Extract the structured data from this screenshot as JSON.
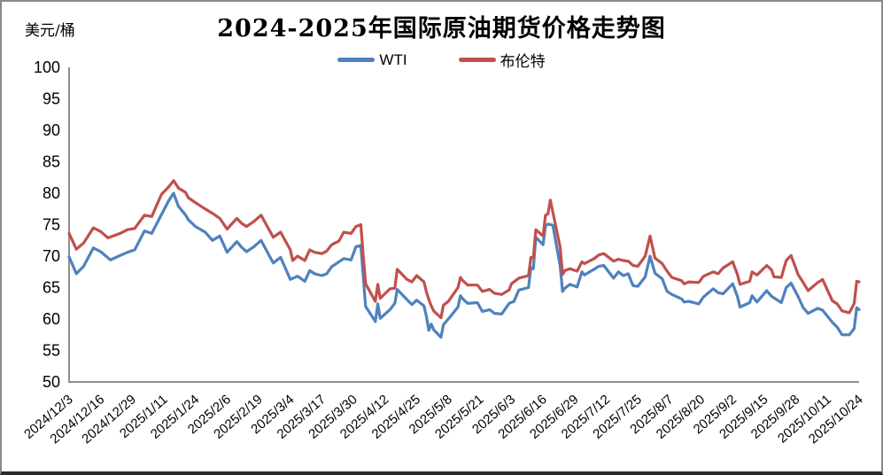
{
  "chart_data": {
    "type": "line",
    "title": "2024-2025年国际原油期货价格走势图",
    "unit_label": "美元/桶",
    "ylim": [
      50,
      100
    ],
    "y_ticks": [
      100,
      95,
      90,
      85,
      80,
      75,
      70,
      65,
      60,
      55,
      50
    ],
    "grid": false,
    "legend_position": "top-center",
    "axis_color": "#8f8f8f",
    "x_unit": "days since 2024/12/3",
    "x_total_days": 325,
    "x_tick_days": [
      0,
      13,
      26,
      39,
      52,
      65,
      78,
      91,
      104,
      117,
      130,
      143,
      156,
      169,
      182,
      195,
      208,
      221,
      234,
      247,
      260,
      273,
      286,
      299,
      312,
      325
    ],
    "x_tick_labels": [
      "2024/12/3",
      "2024/12/16",
      "2024/12/29",
      "2025/1/11",
      "2025/1/24",
      "2025/2/6",
      "2025/2/19",
      "2025/3/4",
      "2025/3/17",
      "2025/3/30",
      "2025/4/12",
      "2025/4/25",
      "2025/5/8",
      "2025/5/21",
      "2025/6/3",
      "2025/6/16",
      "2025/6/29",
      "2025/7/12",
      "2025/7/25",
      "2025/8/7",
      "2025/8/20",
      "2025/9/2",
      "2025/9/15",
      "2025/9/28",
      "2025/10/11",
      "2025/10/24"
    ],
    "series": [
      {
        "name": "WTI",
        "color": "#4f81bd",
        "points": [
          [
            0,
            69.9
          ],
          [
            3,
            67.2
          ],
          [
            6,
            68.4
          ],
          [
            10,
            71.3
          ],
          [
            13,
            70.7
          ],
          [
            17,
            69.4
          ],
          [
            21,
            70.1
          ],
          [
            24,
            70.6
          ],
          [
            27,
            71.0
          ],
          [
            31,
            74.0
          ],
          [
            34,
            73.6
          ],
          [
            38,
            76.6
          ],
          [
            41,
            78.8
          ],
          [
            43,
            80.0
          ],
          [
            45,
            77.9
          ],
          [
            48,
            76.5
          ],
          [
            49,
            75.8
          ],
          [
            52,
            74.7
          ],
          [
            56,
            73.8
          ],
          [
            59,
            72.5
          ],
          [
            62,
            73.2
          ],
          [
            65,
            70.6
          ],
          [
            69,
            72.3
          ],
          [
            71,
            71.4
          ],
          [
            73,
            70.7
          ],
          [
            76,
            71.5
          ],
          [
            79,
            72.5
          ],
          [
            84,
            68.9
          ],
          [
            87,
            69.8
          ],
          [
            91,
            66.3
          ],
          [
            94,
            66.8
          ],
          [
            97,
            66.0
          ],
          [
            99,
            67.7
          ],
          [
            101,
            67.2
          ],
          [
            104,
            66.9
          ],
          [
            106,
            67.2
          ],
          [
            108,
            68.3
          ],
          [
            111,
            69.1
          ],
          [
            113,
            69.6
          ],
          [
            116,
            69.4
          ],
          [
            118,
            71.5
          ],
          [
            120,
            71.7
          ],
          [
            121,
            66.9
          ],
          [
            122,
            62.0
          ],
          [
            126,
            59.6
          ],
          [
            127,
            62.4
          ],
          [
            128,
            60.1
          ],
          [
            132,
            61.5
          ],
          [
            134,
            62.5
          ],
          [
            135,
            64.7
          ],
          [
            139,
            63.1
          ],
          [
            141,
            62.3
          ],
          [
            143,
            63.0
          ],
          [
            146,
            62.1
          ],
          [
            147,
            60.4
          ],
          [
            148,
            58.2
          ],
          [
            149,
            59.2
          ],
          [
            150,
            58.3
          ],
          [
            153,
            57.1
          ],
          [
            154,
            59.1
          ],
          [
            156,
            60.0
          ],
          [
            160,
            61.9
          ],
          [
            161,
            63.7
          ],
          [
            162,
            63.2
          ],
          [
            164,
            62.5
          ],
          [
            168,
            62.6
          ],
          [
            170,
            61.2
          ],
          [
            173,
            61.5
          ],
          [
            175,
            60.9
          ],
          [
            178,
            60.8
          ],
          [
            181,
            62.5
          ],
          [
            183,
            62.8
          ],
          [
            185,
            64.6
          ],
          [
            189,
            65.0
          ],
          [
            190,
            68.2
          ],
          [
            191,
            68.0
          ],
          [
            192,
            73.0
          ],
          [
            195,
            71.8
          ],
          [
            196,
            74.8
          ],
          [
            197,
            75.1
          ],
          [
            199,
            74.9
          ],
          [
            202,
            68.5
          ],
          [
            203,
            64.4
          ],
          [
            204,
            64.9
          ],
          [
            206,
            65.5
          ],
          [
            209,
            65.1
          ],
          [
            211,
            67.5
          ],
          [
            212,
            67.0
          ],
          [
            216,
            67.9
          ],
          [
            218,
            68.4
          ],
          [
            220,
            68.5
          ],
          [
            224,
            66.5
          ],
          [
            226,
            67.5
          ],
          [
            228,
            66.9
          ],
          [
            230,
            67.2
          ],
          [
            232,
            65.3
          ],
          [
            234,
            65.2
          ],
          [
            237,
            66.7
          ],
          [
            239,
            70.0
          ],
          [
            241,
            67.3
          ],
          [
            244,
            66.4
          ],
          [
            246,
            64.4
          ],
          [
            248,
            63.9
          ],
          [
            252,
            63.2
          ],
          [
            253,
            62.7
          ],
          [
            255,
            62.8
          ],
          [
            259,
            62.4
          ],
          [
            261,
            63.5
          ],
          [
            265,
            64.8
          ],
          [
            267,
            64.2
          ],
          [
            269,
            64.0
          ],
          [
            273,
            65.6
          ],
          [
            275,
            63.5
          ],
          [
            276,
            61.9
          ],
          [
            280,
            62.6
          ],
          [
            281,
            63.7
          ],
          [
            283,
            62.7
          ],
          [
            287,
            64.5
          ],
          [
            289,
            63.6
          ],
          [
            293,
            62.6
          ],
          [
            295,
            65.0
          ],
          [
            297,
            65.7
          ],
          [
            300,
            63.5
          ],
          [
            302,
            61.8
          ],
          [
            304,
            60.9
          ],
          [
            308,
            61.7
          ],
          [
            310,
            61.4
          ],
          [
            314,
            59.5
          ],
          [
            316,
            58.7
          ],
          [
            318,
            57.5
          ],
          [
            321,
            57.5
          ],
          [
            323,
            58.5
          ],
          [
            324,
            61.8
          ],
          [
            325,
            61.5
          ]
        ]
      },
      {
        "name": "布伦特",
        "color": "#c0504d",
        "points": [
          [
            0,
            73.6
          ],
          [
            3,
            71.1
          ],
          [
            6,
            72.1
          ],
          [
            10,
            74.5
          ],
          [
            13,
            73.9
          ],
          [
            16,
            72.9
          ],
          [
            21,
            73.6
          ],
          [
            24,
            74.2
          ],
          [
            27,
            74.4
          ],
          [
            31,
            76.5
          ],
          [
            34,
            76.3
          ],
          [
            38,
            79.8
          ],
          [
            41,
            81.0
          ],
          [
            43,
            82.0
          ],
          [
            45,
            80.8
          ],
          [
            48,
            80.1
          ],
          [
            49,
            79.3
          ],
          [
            52,
            78.5
          ],
          [
            56,
            77.5
          ],
          [
            59,
            76.8
          ],
          [
            62,
            76.0
          ],
          [
            65,
            74.3
          ],
          [
            69,
            76.0
          ],
          [
            71,
            75.2
          ],
          [
            73,
            74.7
          ],
          [
            76,
            75.5
          ],
          [
            79,
            76.5
          ],
          [
            84,
            73.0
          ],
          [
            87,
            73.8
          ],
          [
            91,
            71.0
          ],
          [
            92,
            69.3
          ],
          [
            94,
            70.0
          ],
          [
            97,
            69.3
          ],
          [
            99,
            71.0
          ],
          [
            101,
            70.6
          ],
          [
            104,
            70.4
          ],
          [
            106,
            70.8
          ],
          [
            108,
            71.8
          ],
          [
            111,
            72.4
          ],
          [
            113,
            73.8
          ],
          [
            116,
            73.6
          ],
          [
            118,
            74.7
          ],
          [
            120,
            75.0
          ],
          [
            121,
            70.1
          ],
          [
            122,
            65.6
          ],
          [
            126,
            62.8
          ],
          [
            127,
            65.5
          ],
          [
            128,
            63.3
          ],
          [
            132,
            64.8
          ],
          [
            134,
            64.9
          ],
          [
            135,
            67.9
          ],
          [
            139,
            66.3
          ],
          [
            141,
            65.9
          ],
          [
            143,
            66.9
          ],
          [
            146,
            65.9
          ],
          [
            147,
            64.3
          ],
          [
            148,
            63.1
          ],
          [
            149,
            62.1
          ],
          [
            150,
            61.3
          ],
          [
            153,
            60.2
          ],
          [
            154,
            62.2
          ],
          [
            156,
            62.8
          ],
          [
            160,
            65.0
          ],
          [
            161,
            66.6
          ],
          [
            162,
            66.1
          ],
          [
            164,
            65.4
          ],
          [
            168,
            65.4
          ],
          [
            170,
            64.4
          ],
          [
            173,
            64.7
          ],
          [
            175,
            64.1
          ],
          [
            178,
            63.9
          ],
          [
            181,
            64.6
          ],
          [
            182,
            65.6
          ],
          [
            185,
            66.5
          ],
          [
            189,
            66.9
          ],
          [
            190,
            69.8
          ],
          [
            191,
            69.7
          ],
          [
            192,
            74.2
          ],
          [
            195,
            73.2
          ],
          [
            196,
            76.5
          ],
          [
            197,
            76.7
          ],
          [
            198,
            78.9
          ],
          [
            199,
            77.0
          ],
          [
            202,
            71.5
          ],
          [
            203,
            67.1
          ],
          [
            204,
            67.7
          ],
          [
            206,
            68.0
          ],
          [
            209,
            67.6
          ],
          [
            211,
            69.1
          ],
          [
            212,
            68.8
          ],
          [
            216,
            69.6
          ],
          [
            218,
            70.2
          ],
          [
            220,
            70.4
          ],
          [
            224,
            69.2
          ],
          [
            226,
            69.5
          ],
          [
            228,
            69.3
          ],
          [
            230,
            69.2
          ],
          [
            232,
            68.5
          ],
          [
            234,
            68.4
          ],
          [
            237,
            70.0
          ],
          [
            239,
            73.2
          ],
          [
            241,
            69.7
          ],
          [
            244,
            68.8
          ],
          [
            246,
            67.6
          ],
          [
            248,
            66.6
          ],
          [
            252,
            66.1
          ],
          [
            253,
            65.6
          ],
          [
            255,
            65.9
          ],
          [
            259,
            65.8
          ],
          [
            261,
            66.8
          ],
          [
            265,
            67.5
          ],
          [
            267,
            67.2
          ],
          [
            269,
            68.1
          ],
          [
            273,
            69.1
          ],
          [
            275,
            67.0
          ],
          [
            276,
            65.5
          ],
          [
            280,
            66.0
          ],
          [
            281,
            67.5
          ],
          [
            283,
            67.0
          ],
          [
            287,
            68.5
          ],
          [
            289,
            67.8
          ],
          [
            290,
            66.7
          ],
          [
            293,
            66.6
          ],
          [
            295,
            69.3
          ],
          [
            297,
            70.1
          ],
          [
            300,
            67.0
          ],
          [
            302,
            65.8
          ],
          [
            304,
            64.5
          ],
          [
            308,
            65.8
          ],
          [
            310,
            66.3
          ],
          [
            314,
            62.9
          ],
          [
            316,
            62.4
          ],
          [
            318,
            61.3
          ],
          [
            321,
            61.0
          ],
          [
            323,
            62.5
          ],
          [
            324,
            66.0
          ],
          [
            325,
            65.9
          ]
        ]
      }
    ]
  }
}
